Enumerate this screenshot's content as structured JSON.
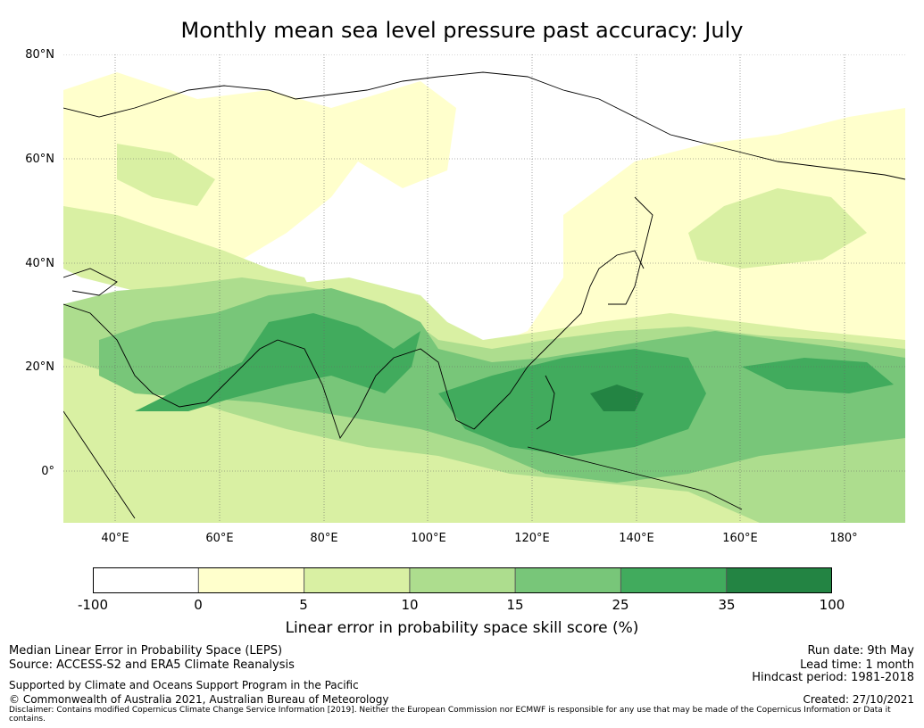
{
  "title": "Monthly mean sea level pressure past accuracy: July",
  "latitude_labels": [
    "80°N",
    "60°N",
    "40°N",
    "20°N",
    "0°"
  ],
  "longitude_labels": [
    "40°E",
    "60°E",
    "80°E",
    "100°E",
    "120°E",
    "140°E",
    "160°E",
    "180°"
  ],
  "map": {
    "region": "Asia, Indian Ocean and western Pacific",
    "lon_range": [
      30,
      192
    ],
    "lat_range": [
      -10,
      80
    ],
    "ocean_land_fill_note": "skill score shaded, white = lowest category"
  },
  "legend": {
    "label": "Linear error in probability space skill score (%)",
    "ticks": [
      "-100",
      "0",
      "5",
      "10",
      "15",
      "25",
      "35",
      "100"
    ],
    "colors": [
      "#ffffff",
      "#ffffcc",
      "#d9f0a3",
      "#addd8e",
      "#78c679",
      "#41ab5d",
      "#238443"
    ]
  },
  "footer": {
    "left_line1": "Median Linear Error in Probability Space (LEPS)",
    "left_line2": "Source: ACCESS-S2 and ERA5 Climate Reanalysis",
    "left_line3": "Supported by Climate and Oceans Support Program in the Pacific",
    "left_line4": "© Commonwealth of Australia 2021, Australian Bureau of Meteorology",
    "right_line1": "Run date: 9th May",
    "right_line2": "Lead time: 1 month",
    "right_line3": "Hindcast period: 1981-2018",
    "right_line4": "Created: 27/10/2021",
    "disclaimer": "Disclaimer: Contains modified Copernicus Climate Change Service Information [2019]. Neither the European Commission nor ECMWF is responsible for any use that may be made of the Copernicus Information or Data it contains."
  }
}
